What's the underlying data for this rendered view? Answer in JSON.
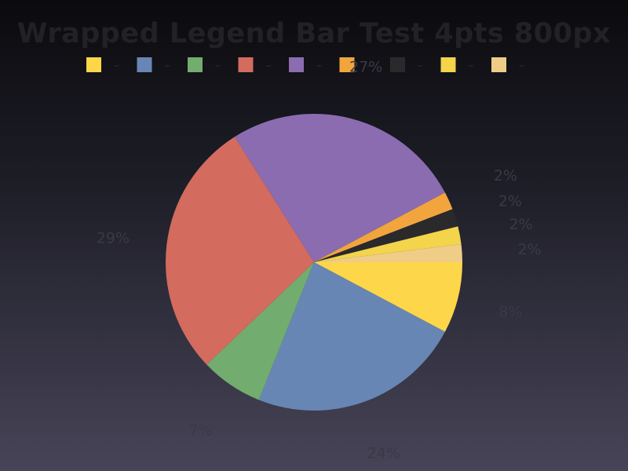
{
  "chart_data": {
    "type": "pie",
    "title": "Wrapped Legend Bar Test 4pts 800px",
    "slices": [
      {
        "value": 8,
        "label": "8%",
        "color": "#fdd64a"
      },
      {
        "value": 24,
        "label": "24%",
        "color": "#6886b4"
      },
      {
        "value": 7,
        "label": "7%",
        "color": "#72ac6e"
      },
      {
        "value": 29,
        "label": "29%",
        "color": "#d36b5f"
      },
      {
        "value": 27,
        "label": "27%",
        "color": "#8c6cb0"
      },
      {
        "value": 2,
        "label": "2%",
        "color": "#f2a53d"
      },
      {
        "value": 2,
        "label": "2%",
        "color": "#2a2a2c"
      },
      {
        "value": 2,
        "label": "2%",
        "color": "#f3d44b"
      },
      {
        "value": 2,
        "label": "2%",
        "color": "#efcd87"
      }
    ],
    "legend": {
      "placement": "top",
      "entries": [
        {
          "color": "#fdd64a",
          "text": "–"
        },
        {
          "color": "#6886b4",
          "text": "–"
        },
        {
          "color": "#72ac6e",
          "text": "–"
        },
        {
          "color": "#d36b5f",
          "text": "–"
        },
        {
          "color": "#8c6cb0",
          "text": "–"
        },
        {
          "color": "#f2a53d",
          "text": "–"
        },
        {
          "color": "#2a2a2c",
          "text": "–"
        },
        {
          "color": "#f3d44b",
          "text": "–"
        },
        {
          "color": "#efcd87",
          "text": "–"
        }
      ]
    }
  }
}
